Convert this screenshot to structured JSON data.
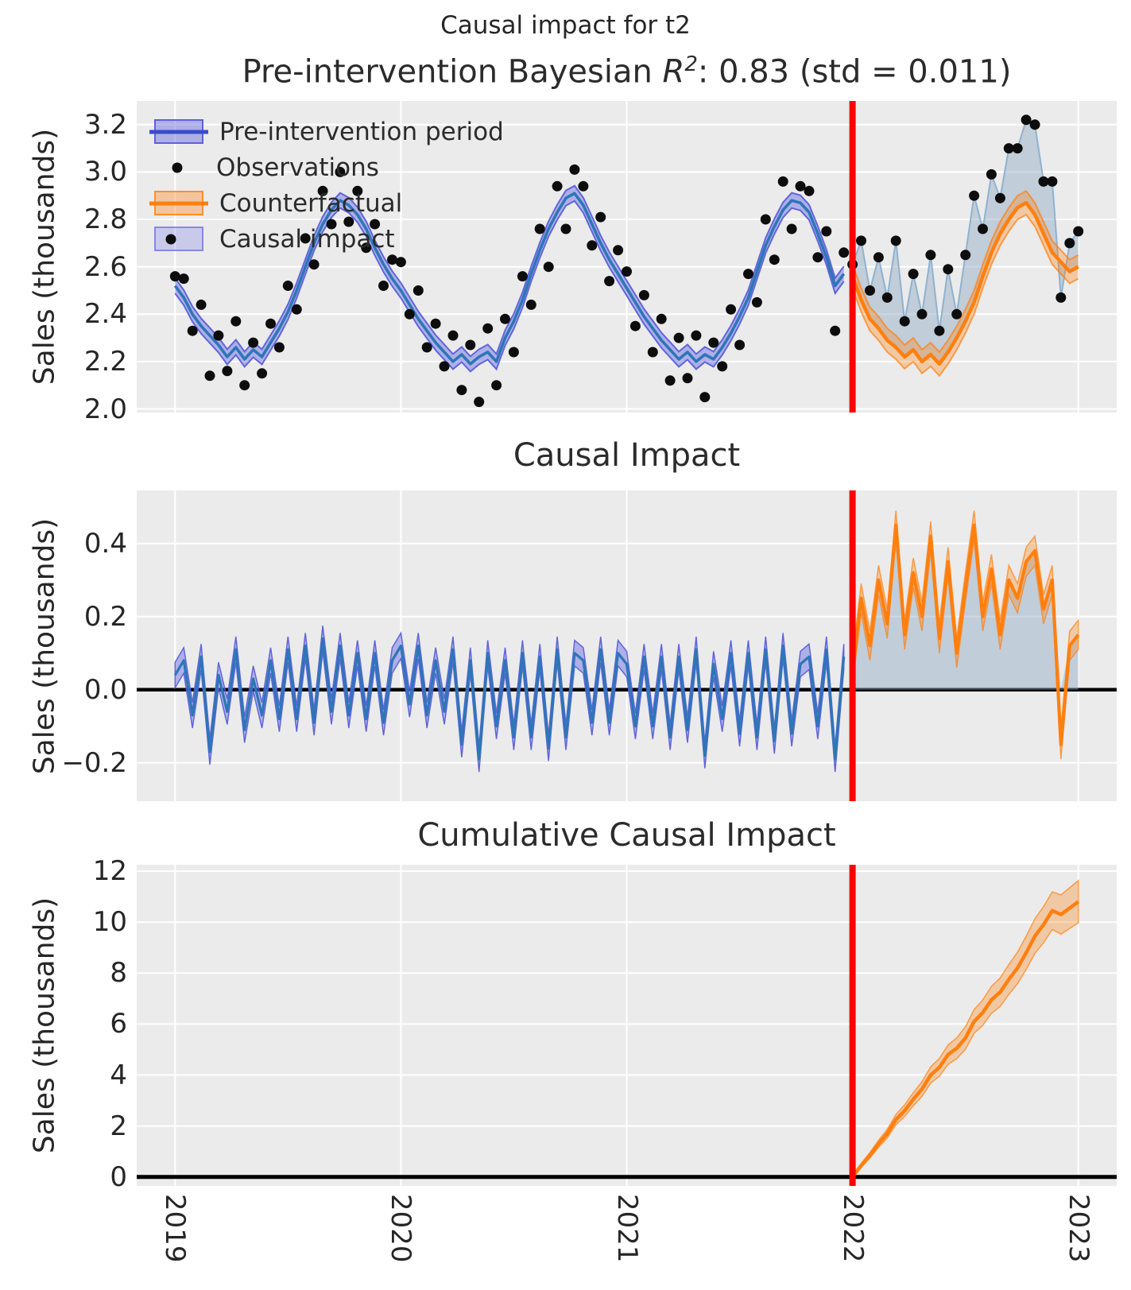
{
  "suptitle": "Causal impact for t2",
  "colors": {
    "figure_background": "#ffffff",
    "axes_background": "#ebebeb",
    "grid": "#ffffff",
    "text": "#262626",
    "pre_mean_line": "#2e76b6",
    "pre_band_fill": "rgba(99,102,230,0.45)",
    "pre_band_edge": "rgba(85,90,216,0.9)",
    "legend_pre_line": "#3a4ccb",
    "observations": "#0d0d0d",
    "counterfactual_line": "#ff7f0e",
    "counterfactual_band_fill": "rgba(255,127,14,0.32)",
    "counterfactual_band_edge": "rgba(255,127,14,0.7)",
    "causal_fill": "rgba(141,169,196,0.45)",
    "post_connector_line": "#8fb2cf",
    "intervention_line": "#ff0000",
    "zero_line": "#000000"
  },
  "legend": {
    "items": [
      {
        "label": "Pre-intervention period",
        "swatch": "blue-band-with-line"
      },
      {
        "label": "Observations",
        "swatch": "black-dot"
      },
      {
        "label": "Counterfactual",
        "swatch": "orange-band-with-line"
      },
      {
        "label": "Causal impact",
        "swatch": "light-blue-band-with-dot"
      }
    ]
  },
  "xticks": {
    "values": [
      2019,
      2020,
      2021,
      2022,
      2023
    ],
    "labels": [
      "2019",
      "2020",
      "2021",
      "2022",
      "2023"
    ]
  },
  "chart_data": [
    {
      "type": "line",
      "title_parts": {
        "prefix": "Pre-intervention Bayesian ",
        "math_base": "R",
        "math_sup": "2",
        "suffix": ": 0.83 (std = 0.011)"
      },
      "title": "Pre-intervention Bayesian R²: 0.83 (std = 0.011)",
      "ylabel": "Sales (thousands)",
      "xlim": [
        2018.83,
        2023.17
      ],
      "ylim": [
        1.985,
        3.3
      ],
      "yticks": {
        "values": [
          3.2,
          3.0,
          2.8,
          2.6,
          2.4,
          2.2,
          2.0
        ],
        "labels": [
          "3.2",
          "3.0",
          "2.8",
          "2.6",
          "2.4",
          "2.2",
          "2.0"
        ]
      },
      "grid": true,
      "legend_position": "upper left",
      "intervention_x": 2022,
      "x_start": 2019.0,
      "x_step": 0.03846153846,
      "series": {
        "pre_mean": [
          2.52,
          2.47,
          2.4,
          2.35,
          2.31,
          2.27,
          2.22,
          2.26,
          2.21,
          2.25,
          2.22,
          2.28,
          2.34,
          2.41,
          2.5,
          2.6,
          2.7,
          2.78,
          2.84,
          2.88,
          2.86,
          2.82,
          2.76,
          2.68,
          2.61,
          2.55,
          2.5,
          2.44,
          2.38,
          2.33,
          2.28,
          2.24,
          2.2,
          2.23,
          2.19,
          2.22,
          2.24,
          2.2,
          2.3,
          2.37,
          2.46,
          2.57,
          2.67,
          2.76,
          2.83,
          2.89,
          2.91,
          2.86,
          2.78,
          2.7,
          2.63,
          2.57,
          2.51,
          2.45,
          2.39,
          2.34,
          2.29,
          2.25,
          2.21,
          2.24,
          2.2,
          2.23,
          2.21,
          2.26,
          2.32,
          2.39,
          2.47,
          2.58,
          2.69,
          2.77,
          2.84,
          2.88,
          2.87,
          2.83,
          2.74,
          2.64,
          2.52,
          2.57
        ],
        "pre_band_halfwidth": 0.032,
        "observations_pre": [
          2.56,
          2.55,
          2.33,
          2.44,
          2.14,
          2.31,
          2.16,
          2.37,
          2.1,
          2.28,
          2.15,
          2.36,
          2.26,
          2.52,
          2.42,
          2.72,
          2.61,
          2.92,
          2.78,
          3.0,
          2.79,
          2.92,
          2.68,
          2.78,
          2.52,
          2.63,
          2.62,
          2.4,
          2.5,
          2.26,
          2.36,
          2.18,
          2.31,
          2.08,
          2.27,
          2.03,
          2.34,
          2.1,
          2.38,
          2.24,
          2.56,
          2.44,
          2.76,
          2.6,
          2.94,
          2.76,
          3.01,
          2.94,
          2.69,
          2.81,
          2.54,
          2.67,
          2.58,
          2.35,
          2.48,
          2.24,
          2.38,
          2.12,
          2.3,
          2.13,
          2.31,
          2.05,
          2.28,
          2.18,
          2.42,
          2.27,
          2.57,
          2.45,
          2.8,
          2.63,
          2.96,
          2.76,
          2.94,
          2.92,
          2.64,
          2.75,
          2.33,
          2.66
        ],
        "counterfactual_x_start": 2022.0,
        "counterfactual": [
          2.56,
          2.46,
          2.38,
          2.34,
          2.29,
          2.26,
          2.22,
          2.25,
          2.2,
          2.23,
          2.19,
          2.24,
          2.3,
          2.37,
          2.45,
          2.56,
          2.66,
          2.74,
          2.8,
          2.85,
          2.87,
          2.82,
          2.74,
          2.66,
          2.62,
          2.58,
          2.6
        ],
        "counterfactual_band_halfwidth": 0.05,
        "observations_post": [
          2.61,
          2.71,
          2.5,
          2.64,
          2.47,
          2.71,
          2.37,
          2.57,
          2.4,
          2.65,
          2.33,
          2.59,
          2.4,
          2.65,
          2.9,
          2.76,
          2.99,
          2.89,
          3.1,
          3.1,
          3.22,
          3.2,
          2.96,
          2.96,
          2.47,
          2.7,
          2.75
        ]
      }
    },
    {
      "type": "line",
      "title": "Causal Impact",
      "ylabel": "Sales (thousands)",
      "xlim": [
        2018.83,
        2023.17
      ],
      "ylim": [
        -0.305,
        0.545
      ],
      "yticks": {
        "values": [
          0.4,
          0.2,
          0.0,
          -0.2
        ],
        "labels": [
          "0.4",
          "0.2",
          "0.0",
          "−0.2"
        ]
      },
      "grid": true,
      "zero_line": true,
      "intervention_x": 2022,
      "x_start": 2019.0,
      "x_step": 0.03846153846,
      "series": {
        "impact_pre_derivation": "observations_pre - pre_mean (see chart 1 data)",
        "impact_pre_band_halfwidth": 0.035,
        "impact_post_x_start": 2022.0,
        "impact_post": [
          0.05,
          0.25,
          0.12,
          0.3,
          0.18,
          0.45,
          0.15,
          0.32,
          0.2,
          0.42,
          0.14,
          0.35,
          0.1,
          0.28,
          0.45,
          0.2,
          0.33,
          0.15,
          0.3,
          0.25,
          0.35,
          0.38,
          0.22,
          0.3,
          -0.15,
          0.12,
          0.15
        ],
        "impact_post_band_halfwidth": 0.04
      }
    },
    {
      "type": "area",
      "title": "Cumulative Causal Impact",
      "ylabel": "Sales (thousands)",
      "xlim": [
        2018.83,
        2023.17
      ],
      "ylim": [
        -0.35,
        12.25
      ],
      "yticks": {
        "values": [
          12,
          10,
          8,
          6,
          4,
          2,
          0
        ],
        "labels": [
          "12",
          "10",
          "8",
          "6",
          "4",
          "2",
          "0"
        ]
      },
      "grid": true,
      "zero_line": true,
      "intervention_x": 2022,
      "series": {
        "cumulative_x_start": 2022.0,
        "cumulative_x_step": 0.03846153846,
        "cumulative": [
          0.0,
          0.45,
          0.85,
          1.3,
          1.7,
          2.25,
          2.6,
          3.05,
          3.45,
          4.0,
          4.3,
          4.8,
          5.05,
          5.45,
          6.1,
          6.45,
          6.95,
          7.25,
          7.75,
          8.2,
          8.8,
          9.45,
          9.9,
          10.45,
          10.3,
          10.55,
          10.8
        ],
        "band_halfwidth_start": 0.05,
        "band_halfwidth_growth_per_point": 0.03
      }
    }
  ]
}
